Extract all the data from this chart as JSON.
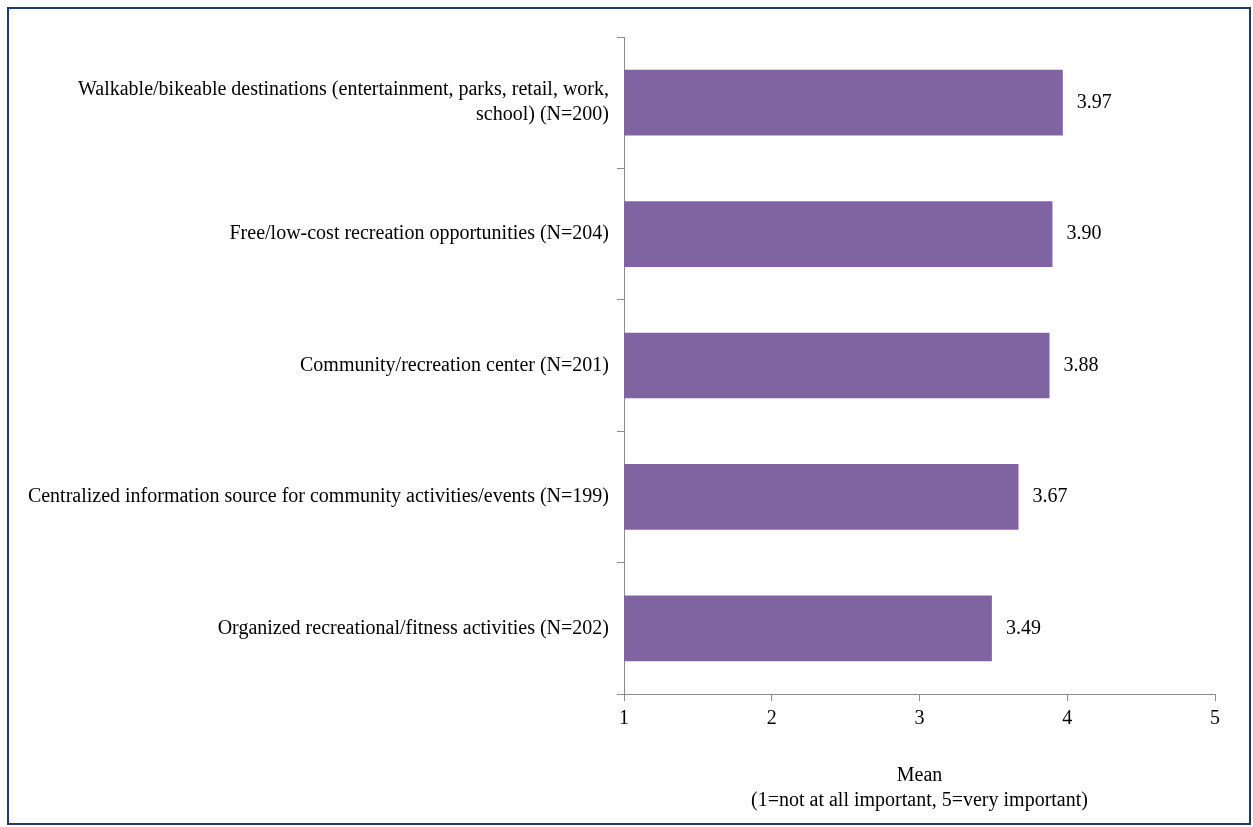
{
  "chart_data": {
    "type": "bar",
    "orientation": "horizontal",
    "categories": [
      "Walkable/bikeable destinations (entertainment, parks, retail, work, school) (N=200)",
      "Free/low-cost recreation opportunities (N=204)",
      "Community/recreation center (N=201)",
      "Centralized information source for community activities/events (N=199)",
      "Organized recreational/fitness activities (N=202)"
    ],
    "values": [
      3.97,
      3.9,
      3.88,
      3.67,
      3.49
    ],
    "color": "#8064a2",
    "xlabel": "Mean\n(1=not at all important, 5=very important)",
    "xlim": [
      1,
      5
    ],
    "xticks": [
      1,
      2,
      3,
      4,
      5
    ],
    "value_labels": [
      "3.97",
      "3.90",
      "3.88",
      "3.67",
      "3.49"
    ]
  }
}
